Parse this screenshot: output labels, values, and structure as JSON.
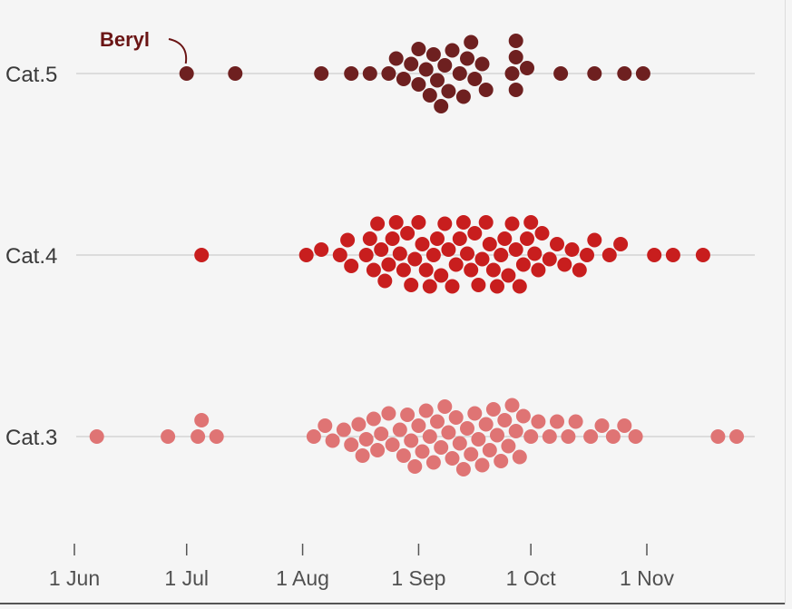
{
  "chart_data": {
    "type": "scatter",
    "subtype": "beeswarm",
    "x_axis": {
      "type": "date",
      "ticks": [
        "1 Jun",
        "1 Jul",
        "1 Aug",
        "1 Sep",
        "1 Oct",
        "1 Nov"
      ],
      "range": [
        "2024-05-26",
        "2024-11-30"
      ]
    },
    "rows": [
      {
        "label": "Cat.5",
        "color": "#6e2020",
        "dates": [
          "2024-07-01",
          "2024-07-14",
          "2024-08-06",
          "2024-08-14",
          "2024-08-19",
          "2024-08-24",
          "2024-08-26",
          "2024-08-28",
          "2024-08-30",
          "2024-09-01",
          "2024-09-01",
          "2024-09-03",
          "2024-09-04",
          "2024-09-05",
          "2024-09-06",
          "2024-09-07",
          "2024-09-08",
          "2024-09-09",
          "2024-09-10",
          "2024-09-12",
          "2024-09-13",
          "2024-09-14",
          "2024-09-15",
          "2024-09-16",
          "2024-09-18",
          "2024-09-19",
          "2024-09-26",
          "2024-09-27",
          "2024-09-27",
          "2024-09-27",
          "2024-09-30",
          "2024-10-09",
          "2024-10-18",
          "2024-10-26",
          "2024-10-31"
        ]
      },
      {
        "label": "Cat.4",
        "color": "#c81e1e",
        "dates": [
          "2024-07-05",
          "2024-08-02",
          "2024-08-06",
          "2024-08-11",
          "2024-08-13",
          "2024-08-14",
          "2024-08-18",
          "2024-08-19",
          "2024-08-20",
          "2024-08-21",
          "2024-08-22",
          "2024-08-23",
          "2024-08-24",
          "2024-08-25",
          "2024-08-26",
          "2024-08-27",
          "2024-08-28",
          "2024-08-29",
          "2024-08-30",
          "2024-08-31",
          "2024-09-01",
          "2024-09-02",
          "2024-09-03",
          "2024-09-04",
          "2024-09-05",
          "2024-09-06",
          "2024-09-07",
          "2024-09-08",
          "2024-09-09",
          "2024-09-10",
          "2024-09-11",
          "2024-09-12",
          "2024-09-13",
          "2024-09-14",
          "2024-09-15",
          "2024-09-16",
          "2024-09-17",
          "2024-09-18",
          "2024-09-19",
          "2024-09-20",
          "2024-09-21",
          "2024-09-22",
          "2024-09-23",
          "2024-09-24",
          "2024-09-25",
          "2024-09-26",
          "2024-09-27",
          "2024-09-28",
          "2024-09-29",
          "2024-09-30",
          "2024-10-01",
          "2024-10-02",
          "2024-10-03",
          "2024-10-04",
          "2024-10-06",
          "2024-10-08",
          "2024-10-10",
          "2024-10-12",
          "2024-10-14",
          "2024-10-16",
          "2024-10-18",
          "2024-10-22",
          "2024-10-25",
          "2024-11-03",
          "2024-11-08",
          "2024-11-16"
        ]
      },
      {
        "label": "Cat.3",
        "color": "#df7474",
        "dates": [
          "2024-06-07",
          "2024-06-26",
          "2024-07-04",
          "2024-07-05",
          "2024-07-09",
          "2024-08-04",
          "2024-08-07",
          "2024-08-09",
          "2024-08-12",
          "2024-08-14",
          "2024-08-16",
          "2024-08-17",
          "2024-08-18",
          "2024-08-20",
          "2024-08-21",
          "2024-08-22",
          "2024-08-24",
          "2024-08-25",
          "2024-08-27",
          "2024-08-28",
          "2024-08-29",
          "2024-08-30",
          "2024-08-31",
          "2024-09-01",
          "2024-09-02",
          "2024-09-03",
          "2024-09-04",
          "2024-09-05",
          "2024-09-06",
          "2024-09-07",
          "2024-09-08",
          "2024-09-09",
          "2024-09-10",
          "2024-09-11",
          "2024-09-12",
          "2024-09-13",
          "2024-09-14",
          "2024-09-15",
          "2024-09-16",
          "2024-09-17",
          "2024-09-18",
          "2024-09-19",
          "2024-09-20",
          "2024-09-21",
          "2024-09-22",
          "2024-09-23",
          "2024-09-24",
          "2024-09-25",
          "2024-09-26",
          "2024-09-27",
          "2024-09-28",
          "2024-09-29",
          "2024-10-01",
          "2024-10-03",
          "2024-10-06",
          "2024-10-08",
          "2024-10-11",
          "2024-10-13",
          "2024-10-17",
          "2024-10-20",
          "2024-10-23",
          "2024-10-26",
          "2024-10-29",
          "2024-11-20",
          "2024-11-25"
        ]
      }
    ],
    "annotations": [
      {
        "text": "Beryl",
        "row": "Cat.5",
        "date": "2024-07-01"
      }
    ],
    "grid": true,
    "legend": "none"
  }
}
